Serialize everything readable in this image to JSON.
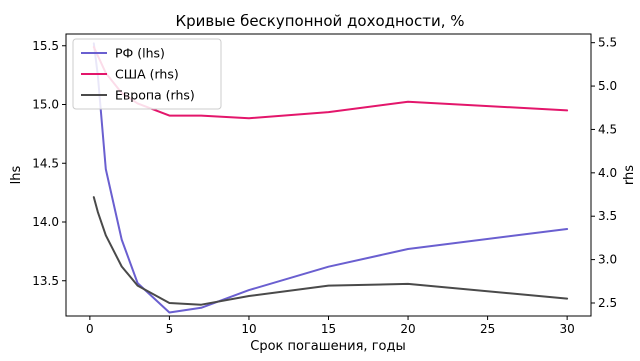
{
  "chart_data": {
    "type": "line",
    "title": "Кривые бескупонной доходности, %",
    "xlabel": "Срок погашения, годы",
    "ylabel_left": "lhs",
    "ylabel_right": "rhs",
    "xlim": [
      -1.5,
      31.5
    ],
    "ylim_left": [
      13.2,
      15.6
    ],
    "ylim_right": [
      2.35,
      5.6
    ],
    "x_ticks": [
      0,
      5,
      10,
      15,
      20,
      25,
      30
    ],
    "y_left_ticks": [
      "13.5",
      "14.0",
      "14.5",
      "15.0",
      "15.5"
    ],
    "y_right_ticks": [
      "2.5",
      "3.0",
      "3.5",
      "4.0",
      "4.5",
      "5.0",
      "5.5"
    ],
    "grid": false,
    "legend_position": "top-left",
    "series": [
      {
        "name": "РФ (lhs)",
        "axis": "left",
        "color": "#6a5fd0",
        "x": [
          0.25,
          0.5,
          0.75,
          1,
          2,
          3,
          5,
          7,
          10,
          15,
          20,
          30
        ],
        "y": [
          15.52,
          15.25,
          14.85,
          14.45,
          13.85,
          13.48,
          13.23,
          13.27,
          13.42,
          13.62,
          13.77,
          13.94
        ]
      },
      {
        "name": "США (rhs)",
        "axis": "right",
        "color": "#e3166b",
        "x": [
          0.25,
          0.5,
          1,
          2,
          3,
          5,
          7,
          10,
          15,
          20,
          30
        ],
        "y": [
          5.45,
          5.35,
          5.15,
          4.92,
          4.8,
          4.66,
          4.66,
          4.63,
          4.7,
          4.82,
          4.72
        ]
      },
      {
        "name": "Европа (rhs)",
        "axis": "right",
        "color": "#4a4a4a",
        "x": [
          0.25,
          0.5,
          1,
          2,
          3,
          5,
          7,
          10,
          15,
          20,
          30
        ],
        "y": [
          3.72,
          3.55,
          3.28,
          2.92,
          2.7,
          2.5,
          2.48,
          2.58,
          2.7,
          2.72,
          2.55
        ]
      }
    ]
  }
}
